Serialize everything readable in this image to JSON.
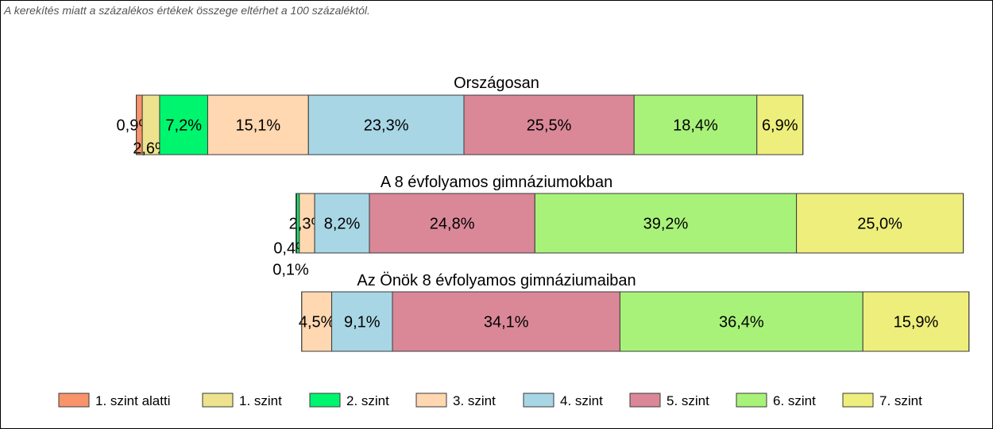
{
  "note": "A kerekítés miatt a  százalékos értékek összege eltérhet a 100 százaléktól.",
  "chart_data": {
    "type": "bar",
    "orientation": "horizontal",
    "stacked": true,
    "legend_position": "bottom",
    "grid": false,
    "categories": [
      "Országosan",
      "A 8 évfolyamos gimnáziumokban",
      "Az Önök 8 évfolyamos gimnáziumaiban"
    ],
    "series": [
      {
        "name": "1. szint alatti",
        "color": "#f8936b",
        "values": [
          0.9,
          0.1,
          0.0
        ],
        "labels": [
          "0,9%",
          "0,1%",
          ""
        ]
      },
      {
        "name": "1. szint",
        "color": "#ede38e",
        "values": [
          2.6,
          0.0,
          0.0
        ],
        "labels": [
          "2,6%",
          "",
          ""
        ]
      },
      {
        "name": "2. szint",
        "color": "#00f56e",
        "values": [
          7.2,
          0.4,
          0.0
        ],
        "labels": [
          "7,2%",
          "0,4%",
          ""
        ]
      },
      {
        "name": "3. szint",
        "color": "#ffd7b0",
        "values": [
          15.1,
          2.3,
          4.5
        ],
        "labels": [
          "15,1%",
          "2,3%",
          "4,5%"
        ]
      },
      {
        "name": "4. szint",
        "color": "#a8d6e5",
        "values": [
          23.3,
          8.2,
          9.1
        ],
        "labels": [
          "23,3%",
          "8,2%",
          "9,1%"
        ]
      },
      {
        "name": "5. szint",
        "color": "#da8898",
        "values": [
          25.5,
          24.8,
          34.1
        ],
        "labels": [
          "25,5%",
          "24,8%",
          "34,1%"
        ]
      },
      {
        "name": "6. szint",
        "color": "#a9f27a",
        "values": [
          18.4,
          39.2,
          36.4
        ],
        "labels": [
          "18,4%",
          "39,2%",
          "36,4%"
        ]
      },
      {
        "name": "7. szint",
        "color": "#eeee7c",
        "values": [
          6.9,
          25.0,
          15.9
        ],
        "labels": [
          "6,9%",
          "25,0%",
          "15,9%"
        ]
      }
    ]
  }
}
